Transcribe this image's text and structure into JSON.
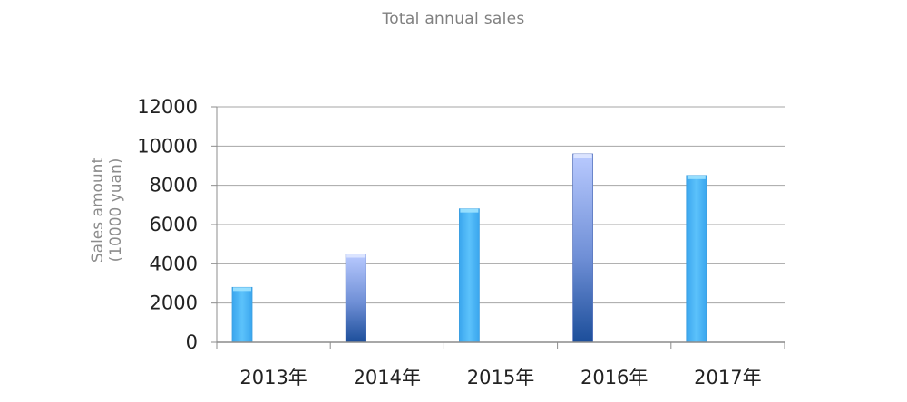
{
  "chart_data": {
    "type": "bar",
    "title": "Total annual sales",
    "xlabel": "",
    "ylabel": "Sales amount (10000 yuan)",
    "categories": [
      "2013年",
      "2014年",
      "2015年",
      "2016年",
      "2017年"
    ],
    "values": [
      2800,
      4500,
      6800,
      9600,
      8500
    ],
    "ylim": [
      0,
      12000
    ],
    "yticks": [
      0,
      2000,
      4000,
      6000,
      8000,
      10000,
      12000
    ],
    "grid": true,
    "legend": "none",
    "bar_styles": [
      "light-blue",
      "blue-gradient",
      "light-blue",
      "blue-gradient",
      "light-blue"
    ],
    "colors": {
      "light_blue": "#4fb8f7",
      "gradient_top": "#b7c8ff",
      "gradient_bottom": "#1c4e9a",
      "grid": "#a6a6a6",
      "axis": "#8c8c8c"
    }
  }
}
